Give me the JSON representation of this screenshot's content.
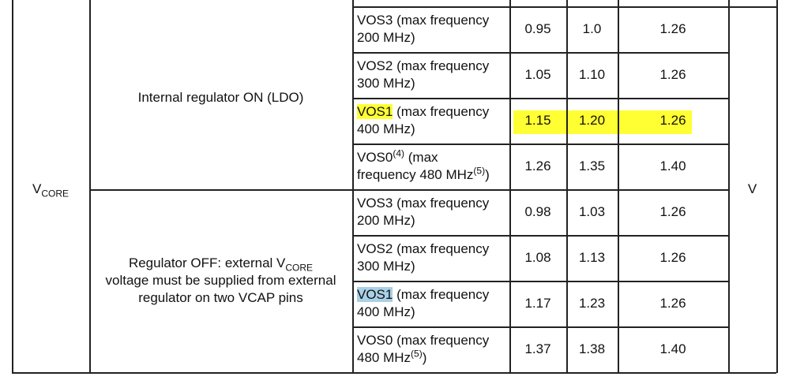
{
  "table": {
    "symbol": [
      {
        "text": "V"
      },
      {
        "text": "CORE",
        "style": "sub"
      }
    ],
    "unit": "V",
    "groups": [
      {
        "label": [
          [
            {
              "text": "Internal regulator ON (LDO)"
            }
          ]
        ],
        "rows": [
          {
            "condition": [
              [
                {
                  "text": "VOS3 (max frequency"
                }
              ],
              [
                {
                  "text": "200 MHz)"
                }
              ]
            ],
            "min": "0.95",
            "typ": "1.0",
            "max": "1.26"
          },
          {
            "condition": [
              [
                {
                  "text": "VOS2 (max frequency"
                }
              ],
              [
                {
                  "text": "300 MHz)"
                }
              ]
            ],
            "min": "1.05",
            "typ": "1.10",
            "max": "1.26"
          },
          {
            "condition": [
              [
                {
                  "text": "VOS1",
                  "style": "highlight-yellow"
                },
                {
                  "text": " (max frequency"
                }
              ],
              [
                {
                  "text": "400 MHz)"
                }
              ]
            ],
            "min": "1.15",
            "typ": "1.20",
            "max": "1.26",
            "highlight": "yellow"
          },
          {
            "condition": [
              [
                {
                  "text": "VOS0"
                },
                {
                  "text": "(4)",
                  "style": "sup"
                },
                {
                  "text": " (max"
                }
              ],
              [
                {
                  "text": "frequency 480 MHz"
                },
                {
                  "text": "(5)",
                  "style": "sup"
                },
                {
                  "text": ")"
                }
              ]
            ],
            "min": "1.26",
            "typ": "1.35",
            "max": "1.40"
          }
        ]
      },
      {
        "label": [
          [
            {
              "text": "Regulator OFF: external V"
            },
            {
              "text": "CORE",
              "style": "sub"
            }
          ],
          [
            {
              "text": "voltage must be supplied from external"
            }
          ],
          [
            {
              "text": "regulator on two VCAP pins"
            }
          ]
        ],
        "rows": [
          {
            "condition": [
              [
                {
                  "text": "VOS3 (max frequency"
                }
              ],
              [
                {
                  "text": "200 MHz)"
                }
              ]
            ],
            "min": "0.98",
            "typ": "1.03",
            "max": "1.26"
          },
          {
            "condition": [
              [
                {
                  "text": "VOS2 (max frequency"
                }
              ],
              [
                {
                  "text": "300 MHz)"
                }
              ]
            ],
            "min": "1.08",
            "typ": "1.13",
            "max": "1.26"
          },
          {
            "condition": [
              [
                {
                  "text": "VOS1",
                  "style": "highlight-blue"
                },
                {
                  "text": " (max frequency"
                }
              ],
              [
                {
                  "text": "400 MHz)"
                }
              ]
            ],
            "min": "1.17",
            "typ": "1.23",
            "max": "1.26"
          },
          {
            "condition": [
              [
                {
                  "text": "VOS0 (max frequency"
                }
              ],
              [
                {
                  "text": "480 MHz"
                },
                {
                  "text": "(5)",
                  "style": "sup"
                },
                {
                  "text": ")"
                }
              ]
            ],
            "min": "1.37",
            "typ": "1.38",
            "max": "1.40"
          }
        ]
      }
    ]
  }
}
